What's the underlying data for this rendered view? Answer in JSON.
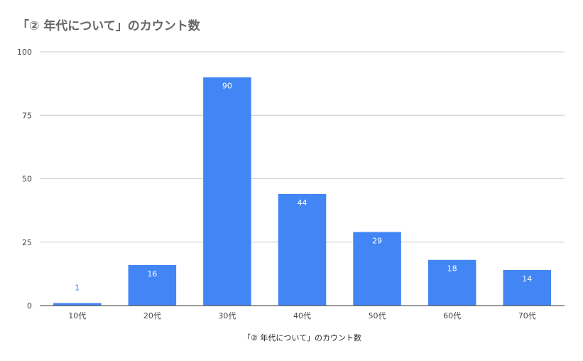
{
  "chart_data": {
    "type": "bar",
    "title": "「② 年代について」のカウント数",
    "xlabel": "「② 年代について」のカウント数",
    "ylabel": "",
    "categories": [
      "10代",
      "20代",
      "30代",
      "40代",
      "50代",
      "60代",
      "70代"
    ],
    "values": [
      1,
      16,
      90,
      44,
      29,
      18,
      14
    ],
    "ylim": [
      0,
      100
    ],
    "yticks": [
      0,
      25,
      50,
      75,
      100
    ],
    "grid": true,
    "legend": "none",
    "data_labels": true
  },
  "colors": {
    "bar": "#4285f4",
    "label_inside": "#ffffff",
    "label_outside": "#4285f4",
    "grid": "#cccccc",
    "axis": "#333333",
    "title": "#666666"
  }
}
